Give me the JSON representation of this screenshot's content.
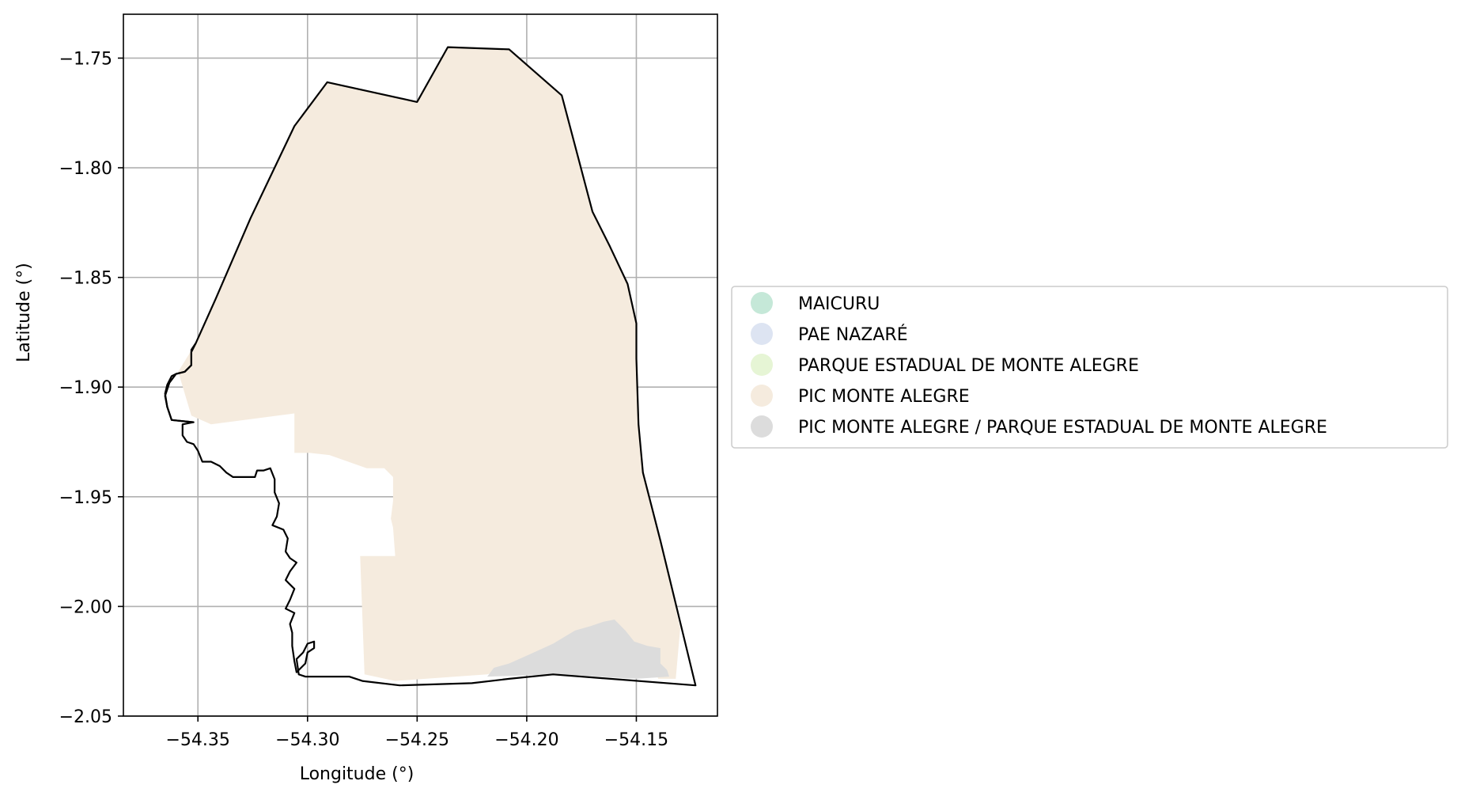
{
  "chart_data": {
    "type": "map",
    "xlabel": "Longitude (°)",
    "ylabel": "Latitude (°)",
    "xlim": [
      -54.384,
      -54.113
    ],
    "ylim": [
      -2.05,
      -1.73
    ],
    "grid": true,
    "legend_position": "center-right, outside",
    "x_ticks": [
      {
        "value": -54.35,
        "label": "−54.35"
      },
      {
        "value": -54.3,
        "label": "−54.30"
      },
      {
        "value": -54.25,
        "label": "−54.25"
      },
      {
        "value": -54.2,
        "label": "−54.20"
      },
      {
        "value": -54.15,
        "label": "−54.15"
      }
    ],
    "y_ticks": [
      {
        "value": -1.75,
        "label": "−1.75"
      },
      {
        "value": -1.8,
        "label": "−1.80"
      },
      {
        "value": -1.85,
        "label": "−1.85"
      },
      {
        "value": -1.9,
        "label": "−1.90"
      },
      {
        "value": -1.95,
        "label": "−1.95"
      },
      {
        "value": -2.0,
        "label": "−2.00"
      },
      {
        "value": -2.05,
        "label": "−2.05"
      }
    ],
    "legend": [
      {
        "label": "MAICURU",
        "color": "#c5e8d8"
      },
      {
        "label": "PAE NAZARÉ",
        "color": "#dde4f2"
      },
      {
        "label": "PARQUE ESTADUAL DE MONTE ALEGRE",
        "color": "#e6f5d5"
      },
      {
        "label": "PIC MONTE ALEGRE",
        "color": "#f5ebde"
      },
      {
        "label": "PIC MONTE ALEGRE / PARQUE ESTADUAL DE MONTE ALEGRE",
        "color": "#dcdcdc"
      }
    ],
    "regions": [
      {
        "name": "PIC MONTE ALEGRE",
        "color": "#f5ebde",
        "coordinates": [
          [
            -54.359,
            -1.893
          ],
          [
            -54.351,
            -1.88
          ],
          [
            -54.342,
            -1.86
          ],
          [
            -54.326,
            -1.823
          ],
          [
            -54.306,
            -1.781
          ],
          [
            -54.291,
            -1.761
          ],
          [
            -54.25,
            -1.77
          ],
          [
            -54.236,
            -1.745
          ],
          [
            -54.208,
            -1.746
          ],
          [
            -54.184,
            -1.767
          ],
          [
            -54.17,
            -1.82
          ],
          [
            -54.162,
            -1.836
          ],
          [
            -54.154,
            -1.853
          ],
          [
            -54.15,
            -1.871
          ],
          [
            -54.15,
            -1.887
          ],
          [
            -54.149,
            -1.917
          ],
          [
            -54.147,
            -1.939
          ],
          [
            -54.139,
            -1.97
          ],
          [
            -54.13,
            -2.01
          ],
          [
            -54.132,
            -2.033
          ],
          [
            -54.14,
            -2.033
          ],
          [
            -54.145,
            -2.022
          ],
          [
            -54.15,
            -2.018
          ],
          [
            -54.16,
            -2.009
          ],
          [
            -54.17,
            -2.012
          ],
          [
            -54.185,
            -2.018
          ],
          [
            -54.205,
            -2.027
          ],
          [
            -54.218,
            -2.031
          ],
          [
            -54.26,
            -2.034
          ],
          [
            -54.274,
            -2.031
          ],
          [
            -54.276,
            -1.977
          ],
          [
            -54.268,
            -1.977
          ],
          [
            -54.26,
            -1.977
          ],
          [
            -54.261,
            -1.964
          ],
          [
            -54.262,
            -1.96
          ],
          [
            -54.261,
            -1.952
          ],
          [
            -54.261,
            -1.941
          ],
          [
            -54.265,
            -1.937
          ],
          [
            -54.273,
            -1.937
          ],
          [
            -54.29,
            -1.931
          ],
          [
            -54.299,
            -1.93
          ],
          [
            -54.306,
            -1.93
          ],
          [
            -54.306,
            -1.912
          ],
          [
            -54.344,
            -1.917
          ],
          [
            -54.353,
            -1.913
          ],
          [
            -54.359,
            -1.893
          ]
        ]
      },
      {
        "name": "PIC MONTE ALEGRE / PARQUE ESTADUAL DE MONTE ALEGRE",
        "color": "#dcdcdc",
        "coordinates": [
          [
            -54.218,
            -2.032
          ],
          [
            -54.215,
            -2.028
          ],
          [
            -54.208,
            -2.026
          ],
          [
            -54.199,
            -2.022
          ],
          [
            -54.188,
            -2.017
          ],
          [
            -54.178,
            -2.011
          ],
          [
            -54.171,
            -2.009
          ],
          [
            -54.165,
            -2.007
          ],
          [
            -54.16,
            -2.006
          ],
          [
            -54.155,
            -2.011
          ],
          [
            -54.151,
            -2.016
          ],
          [
            -54.145,
            -2.018
          ],
          [
            -54.139,
            -2.019
          ],
          [
            -54.139,
            -2.026
          ],
          [
            -54.136,
            -2.029
          ],
          [
            -54.135,
            -2.032
          ],
          [
            -54.15,
            -2.033
          ],
          [
            -54.185,
            -2.031
          ],
          [
            -54.218,
            -2.032
          ]
        ]
      }
    ],
    "outline_color": "#000000",
    "boundary": [
      [
        -54.351,
        -1.88
      ],
      [
        -54.342,
        -1.86
      ],
      [
        -54.326,
        -1.823
      ],
      [
        -54.306,
        -1.781
      ],
      [
        -54.291,
        -1.761
      ],
      [
        -54.25,
        -1.77
      ],
      [
        -54.236,
        -1.745
      ],
      [
        -54.208,
        -1.746
      ],
      [
        -54.184,
        -1.767
      ],
      [
        -54.17,
        -1.82
      ],
      [
        -54.162,
        -1.836
      ],
      [
        -54.154,
        -1.853
      ],
      [
        -54.15,
        -1.871
      ],
      [
        -54.15,
        -1.887
      ],
      [
        -54.149,
        -1.917
      ],
      [
        -54.147,
        -1.939
      ],
      [
        -54.139,
        -1.97
      ],
      [
        -54.123,
        -2.036
      ],
      [
        -54.188,
        -2.031
      ],
      [
        -54.208,
        -2.033
      ],
      [
        -54.225,
        -2.035
      ],
      [
        -54.258,
        -2.036
      ],
      [
        -54.275,
        -2.034
      ],
      [
        -54.281,
        -2.032
      ],
      [
        -54.301,
        -2.032
      ],
      [
        -54.304,
        -2.031
      ],
      [
        -54.305,
        -2.024
      ],
      [
        -54.302,
        -2.021
      ],
      [
        -54.3,
        -2.017
      ],
      [
        -54.297,
        -2.016
      ],
      [
        -54.297,
        -2.019
      ],
      [
        -54.3,
        -2.021
      ],
      [
        -54.301,
        -2.026
      ],
      [
        -54.305,
        -2.03
      ],
      [
        -54.306,
        -2.025
      ],
      [
        -54.307,
        -2.018
      ],
      [
        -54.307,
        -2.012
      ],
      [
        -54.308,
        -2.008
      ],
      [
        -54.306,
        -2.003
      ],
      [
        -54.31,
        -2.001
      ],
      [
        -54.308,
        -1.997
      ],
      [
        -54.306,
        -1.992
      ],
      [
        -54.308,
        -1.99
      ],
      [
        -54.31,
        -1.988
      ],
      [
        -54.308,
        -1.984
      ],
      [
        -54.305,
        -1.98
      ],
      [
        -54.308,
        -1.978
      ],
      [
        -54.31,
        -1.975
      ],
      [
        -54.309,
        -1.969
      ],
      [
        -54.311,
        -1.965
      ],
      [
        -54.316,
        -1.963
      ],
      [
        -54.314,
        -1.959
      ],
      [
        -54.313,
        -1.953
      ],
      [
        -54.315,
        -1.948
      ],
      [
        -54.315,
        -1.942
      ],
      [
        -54.317,
        -1.937
      ],
      [
        -54.32,
        -1.938
      ],
      [
        -54.323,
        -1.938
      ],
      [
        -54.324,
        -1.941
      ],
      [
        -54.328,
        -1.941
      ],
      [
        -54.331,
        -1.941
      ],
      [
        -54.334,
        -1.941
      ],
      [
        -54.337,
        -1.939
      ],
      [
        -54.34,
        -1.936
      ],
      [
        -54.344,
        -1.934
      ],
      [
        -54.348,
        -1.934
      ],
      [
        -54.35,
        -1.929
      ],
      [
        -54.352,
        -1.926
      ],
      [
        -54.355,
        -1.925
      ],
      [
        -54.357,
        -1.922
      ],
      [
        -54.357,
        -1.917
      ],
      [
        -54.352,
        -1.916
      ],
      [
        -54.362,
        -1.915
      ],
      [
        -54.364,
        -1.909
      ],
      [
        -54.365,
        -1.904
      ],
      [
        -54.363,
        -1.898
      ],
      [
        -54.36,
        -1.894
      ],
      [
        -54.356,
        -1.893
      ],
      [
        -54.353,
        -1.89
      ],
      [
        -54.353,
        -1.884
      ],
      [
        -54.351,
        -1.88
      ]
    ],
    "river_bank": [
      [
        -54.351,
        -1.88
      ],
      [
        -54.353,
        -1.883
      ],
      [
        -54.353,
        -1.89
      ],
      [
        -54.356,
        -1.893
      ],
      [
        -54.36,
        -1.894
      ],
      [
        -54.362,
        -1.895
      ],
      [
        -54.364,
        -1.899
      ],
      [
        -54.365,
        -1.903
      ],
      [
        -54.364,
        -1.909
      ],
      [
        -54.362,
        -1.915
      ],
      [
        -54.352,
        -1.916
      ]
    ]
  }
}
